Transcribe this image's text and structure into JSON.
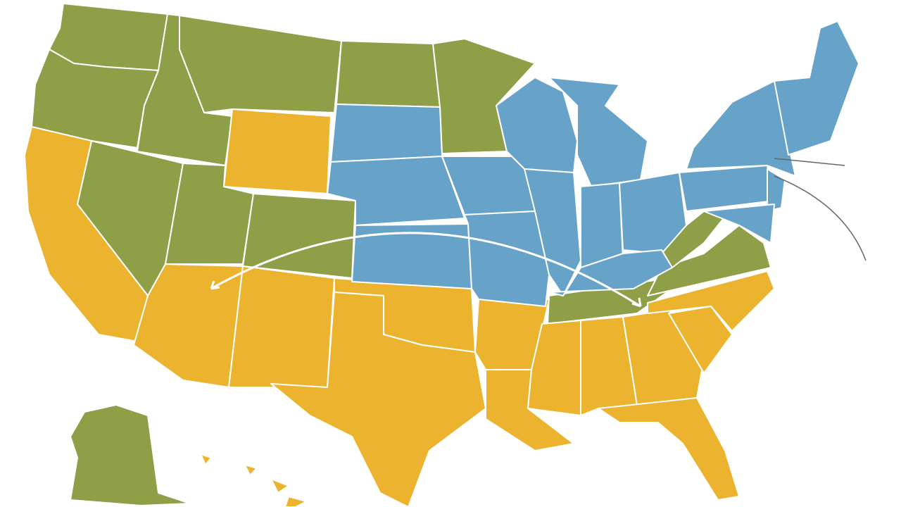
{
  "map": {
    "region_colors": [
      "#8e9f48",
      "#ecb42e",
      "#67a3c9"
    ]
  }
}
